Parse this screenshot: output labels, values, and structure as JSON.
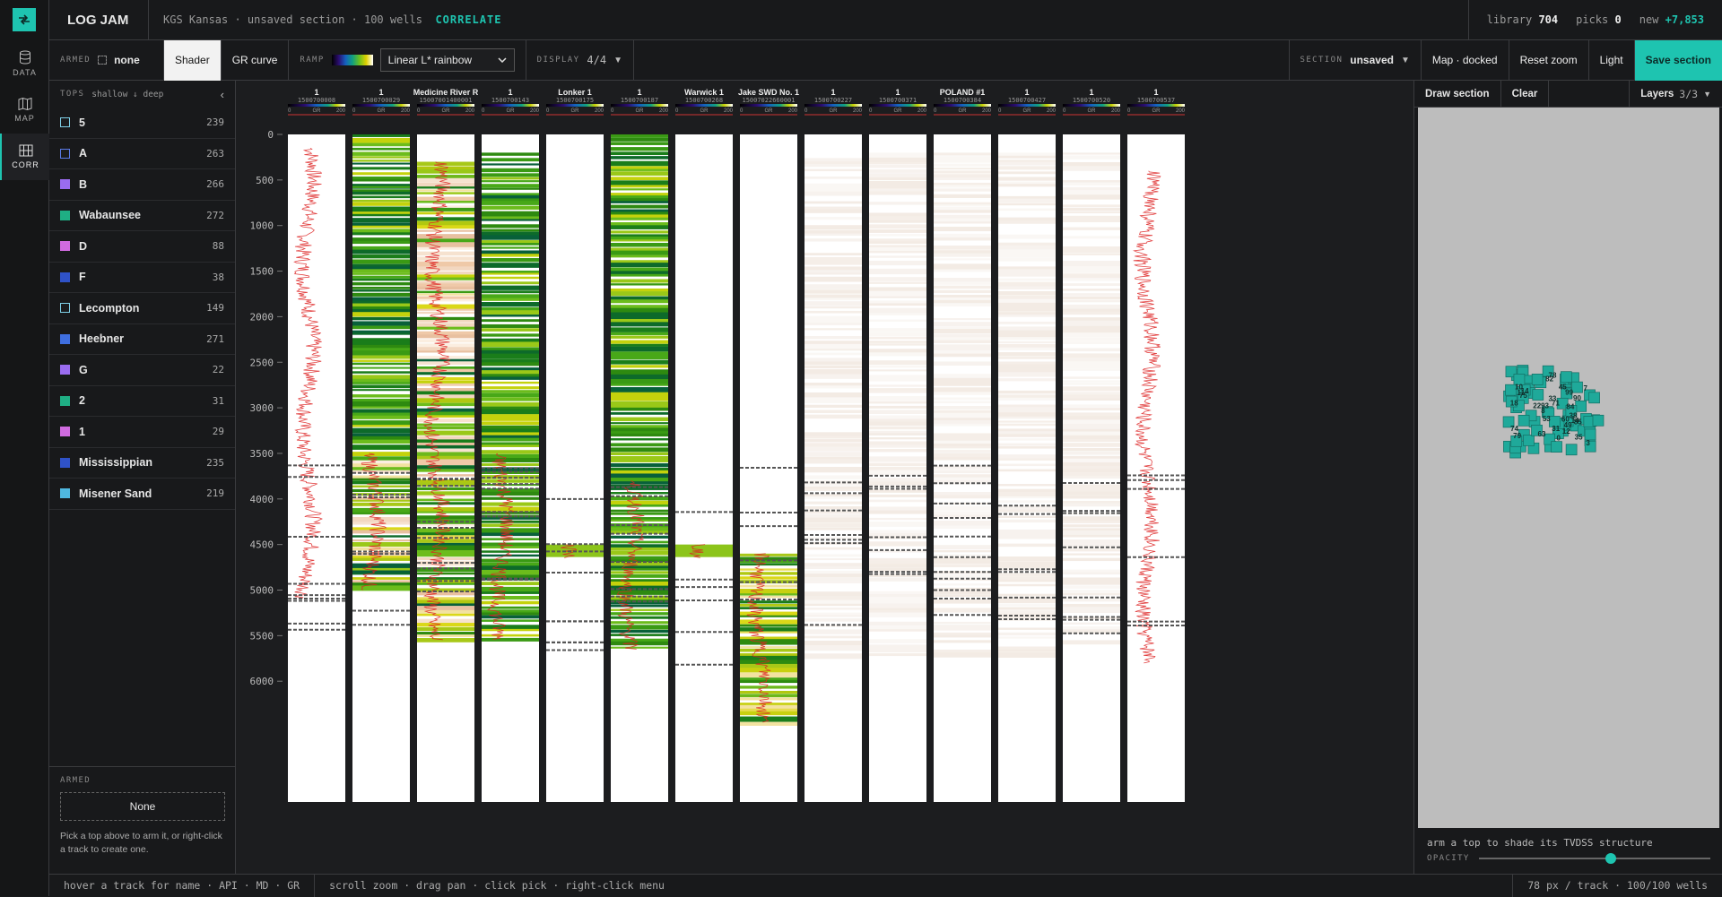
{
  "app": {
    "title": "LOG JAM",
    "project": "KGS Kansas · unsaved section · 100 wells",
    "mode": "CORRELATE"
  },
  "stats": {
    "library_label": "library",
    "library": "704",
    "picks_label": "picks",
    "picks": "0",
    "new_label": "new",
    "new": "+7,853"
  },
  "rail": [
    {
      "label": "DATA",
      "icon": "database-icon"
    },
    {
      "label": "MAP",
      "icon": "map-icon"
    },
    {
      "label": "CORR",
      "icon": "correlation-grid-icon"
    }
  ],
  "toolbar": {
    "armed_label": "ARMED",
    "armed_value": "none",
    "shader": "Shader",
    "gr_curve": "GR curve",
    "ramp_label": "RAMP",
    "ramp_value": "Linear L* rainbow",
    "display_label": "DISPLAY",
    "display_value": "4/4",
    "section_label": "SECTION",
    "section_value": "unsaved",
    "map_docked": "Map · docked",
    "reset_zoom": "Reset zoom",
    "light": "Light",
    "save_section": "Save section"
  },
  "tops_panel": {
    "title": "TOPS",
    "order": "shallow ↓ deep",
    "items": [
      {
        "name": "5",
        "count": "239",
        "color": "#1a1b1d",
        "outline": "#7fd0e8"
      },
      {
        "name": "A",
        "count": "263",
        "color": "#1a1b1d",
        "outline": "#5a7bea"
      },
      {
        "name": "B",
        "count": "266",
        "color": "#9a6cf0",
        "outline": ""
      },
      {
        "name": "Wabaunsee",
        "count": "272",
        "color": "#1fae84",
        "outline": ""
      },
      {
        "name": "D",
        "count": "88",
        "color": "#d06be0",
        "outline": ""
      },
      {
        "name": "F",
        "count": "38",
        "color": "#2f52c8",
        "outline": ""
      },
      {
        "name": "Lecompton",
        "count": "149",
        "color": "#1a1b1d",
        "outline": "#7fd0e8"
      },
      {
        "name": "Heebner",
        "count": "271",
        "color": "#3f6fe0",
        "outline": ""
      },
      {
        "name": "G",
        "count": "22",
        "color": "#9a6cf0",
        "outline": ""
      },
      {
        "name": "2",
        "count": "31",
        "color": "#1fae84",
        "outline": ""
      },
      {
        "name": "1",
        "count": "29",
        "color": "#d06be0",
        "outline": ""
      },
      {
        "name": "Mississippian",
        "count": "235",
        "color": "#2f52c8",
        "outline": ""
      },
      {
        "name": "Misener Sand",
        "count": "219",
        "color": "#4fb8e0",
        "outline": ""
      }
    ]
  },
  "armed": {
    "label": "ARMED",
    "value": "None",
    "hint": "Pick a top above to arm it, or right-click a track to create one."
  },
  "corr": {
    "depth_ticks": [
      "0",
      "500",
      "1000",
      "1500",
      "2000",
      "2500",
      "3000",
      "3500",
      "4000",
      "4500",
      "5000",
      "5500",
      "6000"
    ],
    "scale_min": "0",
    "scale_mid": "GR",
    "scale_max": "200",
    "wells": [
      {
        "name": "1",
        "api": "1500700008",
        "shader": "none",
        "gr": [
          150,
          5100
        ]
      },
      {
        "name": "1",
        "api": "1500700029",
        "shader": "green",
        "gr": [
          3500,
          5000
        ]
      },
      {
        "name": "Medicine River R",
        "api": "15007001400001",
        "shader": "mix",
        "gr": [
          300,
          5550
        ]
      },
      {
        "name": "1",
        "api": "1500700143",
        "shader": "green",
        "gr": [
          3500,
          5550
        ]
      },
      {
        "name": "Lonker 1",
        "api": "1500700175",
        "shader": "none",
        "gr": [
          4500,
          4650
        ]
      },
      {
        "name": "1",
        "api": "1500700187",
        "shader": "green",
        "gr": [
          3800,
          5650
        ]
      },
      {
        "name": "Warwick 1",
        "api": "1500700268",
        "shader": "none",
        "gr": [
          4500,
          4650
        ]
      },
      {
        "name": "Jake SWD No. 1",
        "api": "15007022660001",
        "shader": "yellow",
        "gr": [
          4600,
          6450
        ]
      },
      {
        "name": "1",
        "api": "1500700227",
        "shader": "faint",
        "gr": null
      },
      {
        "name": "1",
        "api": "1500700371",
        "shader": "faint",
        "gr": null
      },
      {
        "name": "POLAND #1",
        "api": "1500700384",
        "shader": "faint",
        "gr": null
      },
      {
        "name": "1",
        "api": "1500700427",
        "shader": "faint",
        "gr": null
      },
      {
        "name": "1",
        "api": "1500700520",
        "shader": "faint",
        "gr": null
      },
      {
        "name": "1",
        "api": "1500700537",
        "shader": "none",
        "gr": [
          400,
          5800
        ]
      }
    ]
  },
  "map": {
    "draw_section": "Draw section",
    "clear": "Clear",
    "layers_label": "Layers",
    "layers_value": "3/3",
    "hint": "arm a top to shade its TVDSS structure",
    "opacity_label": "OPACITY",
    "opacity": 0.57,
    "labels": [
      "79",
      "93",
      "45",
      "74",
      "11",
      "60",
      "31",
      "75",
      "82",
      "7",
      "35",
      "63",
      "71",
      "33",
      "99",
      "49",
      "78",
      "85",
      "84",
      "14",
      "18",
      "3",
      "90",
      "12",
      "38",
      "14",
      "10",
      "53",
      "8",
      "0",
      "22"
    ]
  },
  "status": {
    "left": "hover a track for name · API · MD · GR",
    "middle": "scroll zoom · drag pan · click pick · right-click menu",
    "right": "78 px / track · 100/100 wells"
  }
}
